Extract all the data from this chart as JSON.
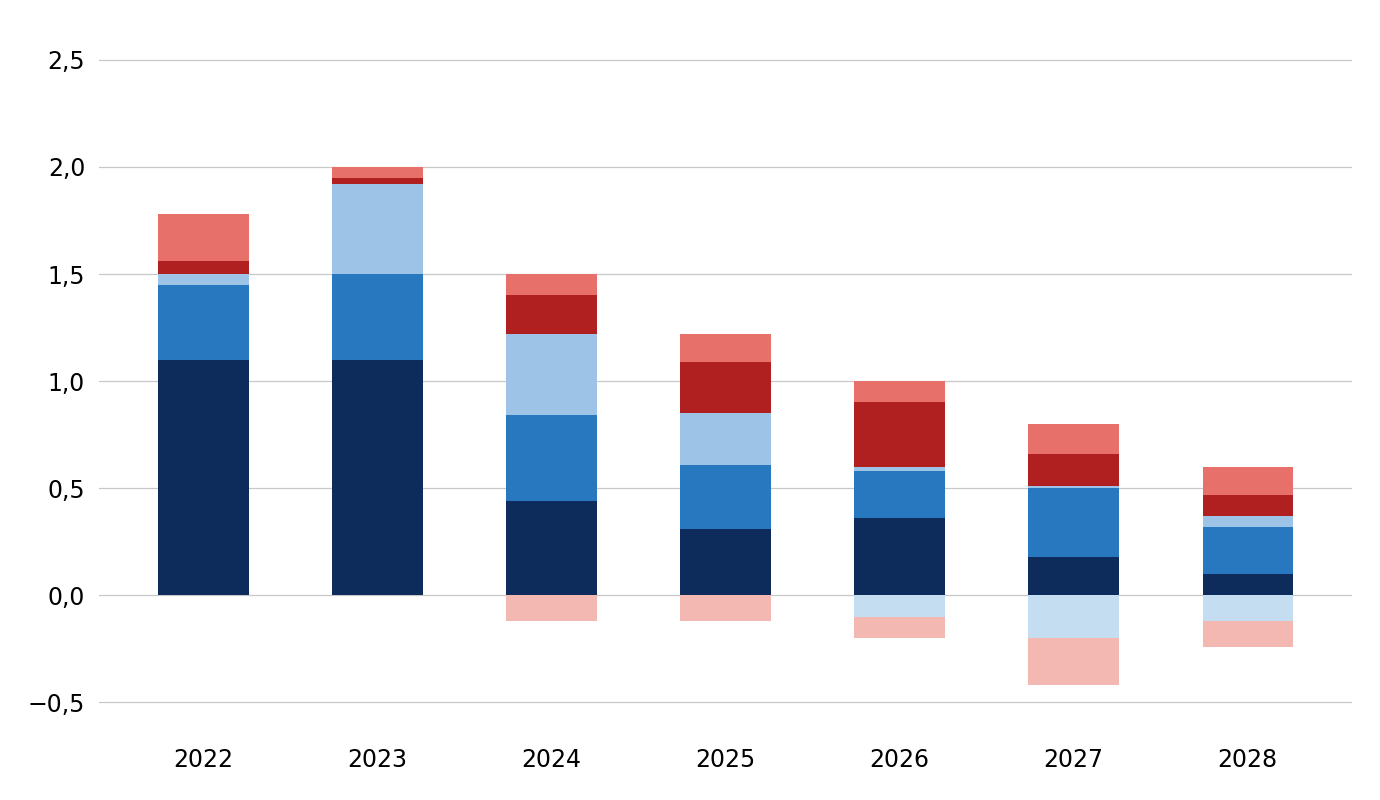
{
  "years": [
    "2022",
    "2023",
    "2024",
    "2025",
    "2026",
    "2027",
    "2028"
  ],
  "positive_segments": [
    {
      "color": "#0d2c5c",
      "values": [
        1.1,
        1.1,
        0.44,
        0.31,
        0.36,
        0.18,
        0.1
      ]
    },
    {
      "color": "#2878c0",
      "values": [
        0.35,
        0.4,
        0.4,
        0.3,
        0.22,
        0.32,
        0.22
      ]
    },
    {
      "color": "#9dc3e6",
      "values": [
        0.05,
        0.42,
        0.38,
        0.24,
        0.02,
        0.01,
        0.05
      ]
    },
    {
      "color": "#b02020",
      "values": [
        0.06,
        0.03,
        0.18,
        0.24,
        0.3,
        0.15,
        0.1
      ]
    },
    {
      "color": "#e8706a",
      "values": [
        0.22,
        0.05,
        0.1,
        0.13,
        0.1,
        0.14,
        0.13
      ]
    }
  ],
  "negative_segments": [
    {
      "color": "#c5ddf0",
      "values": [
        0.0,
        0.0,
        0.0,
        0.0,
        -0.1,
        -0.2,
        -0.12
      ]
    },
    {
      "color": "#f4b8b2",
      "values": [
        0.0,
        0.0,
        -0.12,
        -0.12,
        -0.1,
        -0.22,
        -0.12
      ]
    }
  ],
  "ylim": [
    -0.65,
    2.65
  ],
  "yticks": [
    -0.5,
    0.0,
    0.5,
    1.0,
    1.5,
    2.0,
    2.5
  ],
  "background_color": "#ffffff",
  "grid_color": "#c8c8c8",
  "bar_width": 0.52
}
